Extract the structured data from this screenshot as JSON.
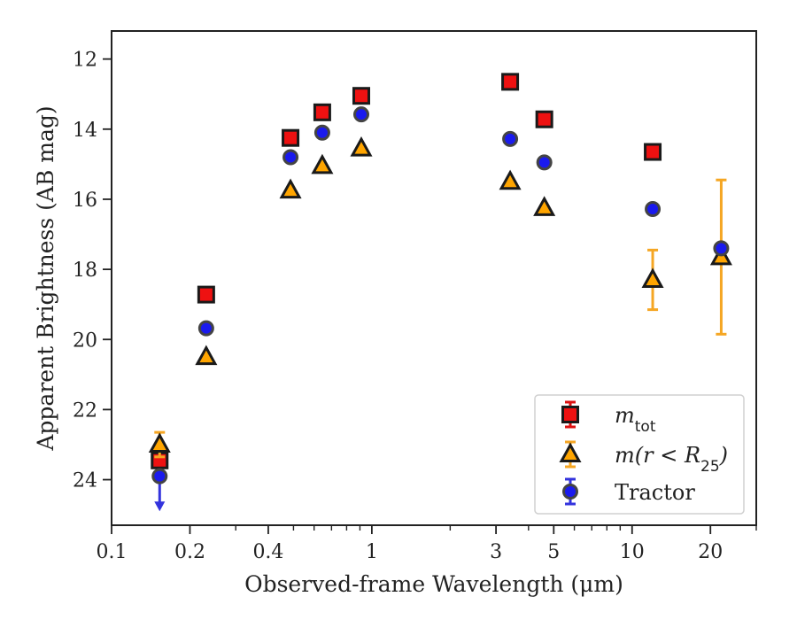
{
  "chart_data": {
    "type": "scatter",
    "xlabel": "Observed-frame Wavelength (μm)",
    "ylabel": "Apparent Brightness (AB mag)",
    "x_scale": "log",
    "xlim": [
      0.1,
      30
    ],
    "ylim": [
      25.3,
      11.2
    ],
    "y_inverted": true,
    "x_ticks": [
      {
        "value": 0.1,
        "label": "0.1"
      },
      {
        "value": 0.2,
        "label": "0.2"
      },
      {
        "value": 0.4,
        "label": "0.4"
      },
      {
        "value": 1,
        "label": "1"
      },
      {
        "value": 3,
        "label": "3"
      },
      {
        "value": 5,
        "label": "5"
      },
      {
        "value": 10,
        "label": "10"
      },
      {
        "value": 20,
        "label": "20"
      }
    ],
    "y_ticks": [
      {
        "value": 12,
        "label": "12"
      },
      {
        "value": 14,
        "label": "14"
      },
      {
        "value": 16,
        "label": "16"
      },
      {
        "value": 18,
        "label": "18"
      },
      {
        "value": 20,
        "label": "20"
      },
      {
        "value": 22,
        "label": "22"
      },
      {
        "value": 24,
        "label": "24"
      }
    ],
    "grid": false,
    "legend_position": "bottom-right",
    "series": [
      {
        "name_base": "m",
        "name_sub": "tot",
        "marker": "square",
        "color": "#ee1111",
        "error_color": "#dd1111",
        "points": [
          {
            "x": 0.153,
            "y": 23.45
          },
          {
            "x": 0.231,
            "y": 18.72
          },
          {
            "x": 0.487,
            "y": 14.25
          },
          {
            "x": 0.645,
            "y": 13.52
          },
          {
            "x": 0.911,
            "y": 13.05
          },
          {
            "x": 3.4,
            "y": 12.65
          },
          {
            "x": 4.6,
            "y": 13.72
          },
          {
            "x": 12.0,
            "y": 14.65
          }
        ]
      },
      {
        "name_base": "m(r < R",
        "name_sub": "25",
        "name_suffix": ")",
        "marker": "triangle",
        "color": "#ffa500",
        "error_color": "#f5a623",
        "points": [
          {
            "x": 0.153,
            "y": 23.0,
            "yerr": 0.35
          },
          {
            "x": 0.231,
            "y": 20.5
          },
          {
            "x": 0.487,
            "y": 15.75
          },
          {
            "x": 0.645,
            "y": 15.05
          },
          {
            "x": 0.911,
            "y": 14.55
          },
          {
            "x": 3.4,
            "y": 15.5
          },
          {
            "x": 4.6,
            "y": 16.25
          },
          {
            "x": 12.0,
            "y": 18.3,
            "yerr": 0.85
          },
          {
            "x": 22.0,
            "y": 17.65,
            "yerr_low": 2.2,
            "yerr_high": 2.2
          }
        ]
      },
      {
        "name_base": "Tractor",
        "marker": "circle",
        "color": "#1a1aee",
        "error_color": "#3333dd",
        "points": [
          {
            "x": 0.153,
            "y": 23.9,
            "upper_limit": true,
            "arrow_to": 24.85
          },
          {
            "x": 0.231,
            "y": 19.68
          },
          {
            "x": 0.487,
            "y": 14.8
          },
          {
            "x": 0.645,
            "y": 14.1
          },
          {
            "x": 0.911,
            "y": 13.58
          },
          {
            "x": 3.4,
            "y": 14.28
          },
          {
            "x": 4.6,
            "y": 14.95
          },
          {
            "x": 12.0,
            "y": 16.28
          },
          {
            "x": 22.0,
            "y": 17.4
          }
        ]
      }
    ]
  }
}
